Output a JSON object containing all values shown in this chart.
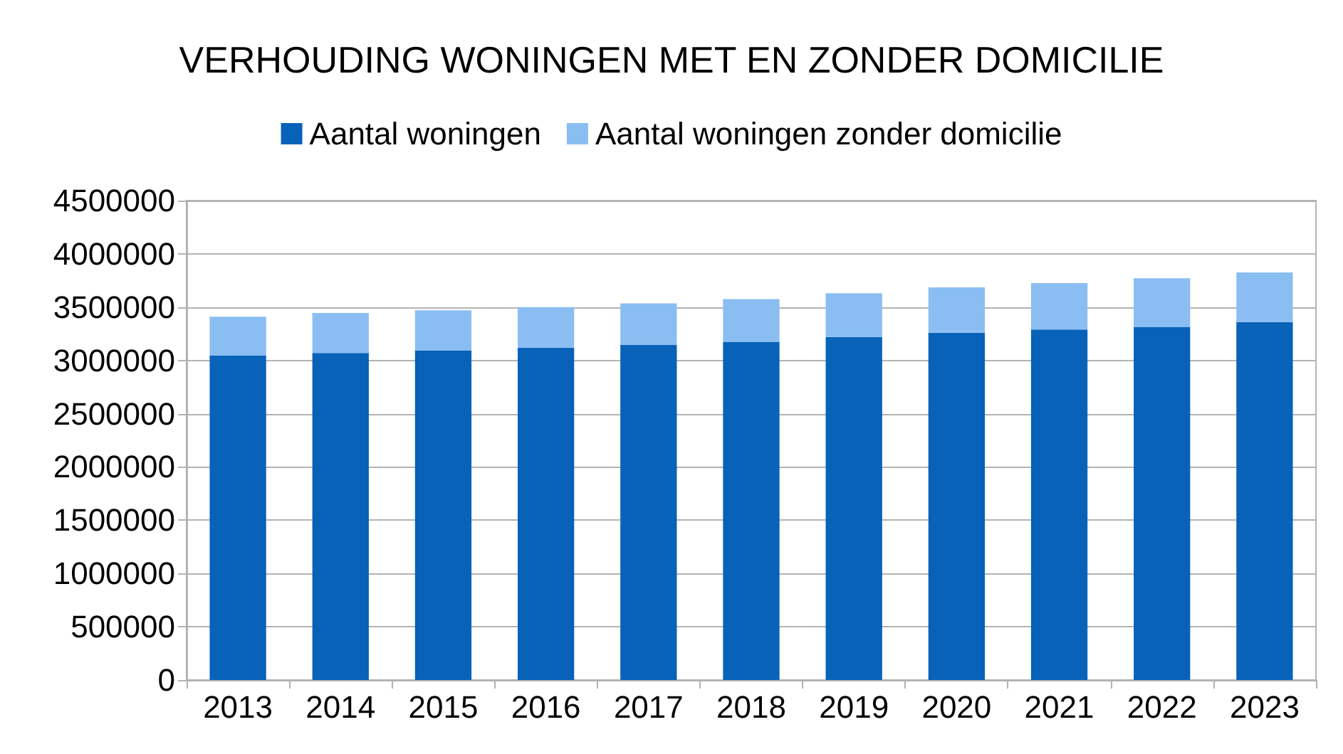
{
  "chart_data": {
    "type": "bar",
    "title": "VERHOUDING WONINGEN MET EN ZONDER DOMICILIE",
    "categories": [
      "2013",
      "2014",
      "2015",
      "2016",
      "2017",
      "2018",
      "2019",
      "2020",
      "2021",
      "2022",
      "2023"
    ],
    "series": [
      {
        "name": "Aantal woningen",
        "color": "#0862b8",
        "values": [
          3045000,
          3070000,
          3095000,
          3120000,
          3145000,
          3175000,
          3220000,
          3260000,
          3290000,
          3315000,
          3360000
        ]
      },
      {
        "name": "Aantal woningen zonder domicilie",
        "color": "#8abef2",
        "values": [
          365000,
          375000,
          375000,
          380000,
          390000,
          400000,
          410000,
          425000,
          435000,
          455000,
          465000
        ]
      }
    ],
    "stacked": true,
    "ylim": [
      0,
      4500000
    ],
    "yticks": [
      0,
      500000,
      1000000,
      1500000,
      2000000,
      2500000,
      3000000,
      3500000,
      4000000,
      4500000
    ],
    "grid": "y",
    "legend": "top"
  }
}
